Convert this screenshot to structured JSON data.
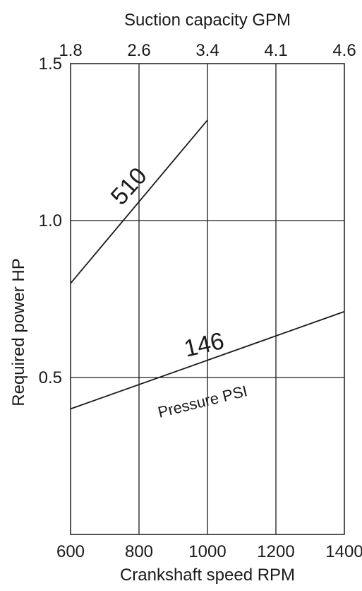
{
  "chart_data": {
    "type": "line",
    "xlabel": "Crankshaft speed RPM",
    "ylabel": "Required power  HP",
    "x2label": "Suction capacity GPM",
    "x_ticks": [
      600,
      800,
      1000,
      1200,
      1400
    ],
    "x2_ticks": [
      "1.8",
      "2.6",
      "3.4",
      "4.1",
      "4.6"
    ],
    "y_ticks": [
      "0.5",
      "1.0",
      "1.5"
    ],
    "xlim": [
      600,
      1400
    ],
    "ylim": [
      0,
      1.5
    ],
    "grid": true,
    "series": [
      {
        "name": "510",
        "x": [
          600,
          1000
        ],
        "y": [
          0.8,
          1.32
        ]
      },
      {
        "name": "146",
        "x": [
          600,
          1400
        ],
        "y": [
          0.4,
          0.71
        ]
      }
    ],
    "annotations": [
      "Pressure PSI"
    ],
    "colors": {
      "line": "#1a1a1a",
      "grid": "#1a1a1a"
    }
  }
}
